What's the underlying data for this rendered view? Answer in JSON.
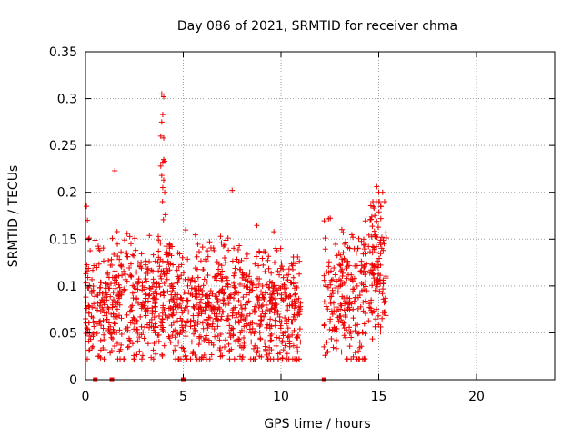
{
  "chart_data": {
    "type": "scatter",
    "title": "Day 086 of 2021, SRMTID for receiver chma",
    "xlabel": "GPS time / hours",
    "ylabel": "SRMTID / TECUs",
    "xlim": [
      0,
      24
    ],
    "ylim": [
      0,
      0.35
    ],
    "xticks": [
      0,
      5,
      10,
      15,
      20
    ],
    "xtick_labels": [
      "0",
      "5",
      "10",
      "15",
      "20"
    ],
    "yticks": [
      0,
      0.05,
      0.1,
      0.15,
      0.2,
      0.25,
      0.3,
      0.35
    ],
    "ytick_labels": [
      "0",
      "0.05",
      "0.1",
      "0.15",
      "0.2",
      "0.25",
      "0.3",
      "0.35"
    ],
    "grid": true,
    "colors": {
      "series": "#ee0000",
      "grid": "#a0a0a0",
      "axis": "#000000"
    },
    "marker": "plus",
    "dense_segments": [
      {
        "from": 0.0,
        "to": 0.2,
        "center": 0.09,
        "spread": 0.09,
        "n": 30
      },
      {
        "from": 0.2,
        "to": 1.5,
        "center": 0.075,
        "spread": 0.085,
        "n": 130
      },
      {
        "from": 1.5,
        "to": 3.6,
        "center": 0.085,
        "spread": 0.1,
        "n": 210
      },
      {
        "from": 3.6,
        "to": 4.4,
        "center": 0.1,
        "spread": 0.11,
        "n": 90
      },
      {
        "from": 4.4,
        "to": 6.0,
        "center": 0.075,
        "spread": 0.1,
        "n": 170
      },
      {
        "from": 6.0,
        "to": 8.0,
        "center": 0.08,
        "spread": 0.1,
        "n": 220
      },
      {
        "from": 8.0,
        "to": 10.0,
        "center": 0.075,
        "spread": 0.1,
        "n": 210
      },
      {
        "from": 10.0,
        "to": 11.0,
        "center": 0.075,
        "spread": 0.09,
        "n": 110
      },
      {
        "from": 12.2,
        "to": 13.0,
        "center": 0.095,
        "spread": 0.11,
        "n": 70
      },
      {
        "from": 13.0,
        "to": 14.5,
        "center": 0.09,
        "spread": 0.11,
        "n": 150
      },
      {
        "from": 14.5,
        "to": 15.4,
        "center": 0.12,
        "spread": 0.12,
        "n": 110
      }
    ],
    "notable_points": [
      {
        "x": 3.9,
        "y": 0.305
      },
      {
        "x": 4.0,
        "y": 0.302
      },
      {
        "x": 3.95,
        "y": 0.283
      },
      {
        "x": 3.9,
        "y": 0.275
      },
      {
        "x": 3.85,
        "y": 0.26
      },
      {
        "x": 4.0,
        "y": 0.258
      },
      {
        "x": 4.0,
        "y": 0.235
      },
      {
        "x": 3.95,
        "y": 0.232
      },
      {
        "x": 4.05,
        "y": 0.233
      },
      {
        "x": 3.85,
        "y": 0.228
      },
      {
        "x": 3.9,
        "y": 0.218
      },
      {
        "x": 4.0,
        "y": 0.213
      },
      {
        "x": 3.95,
        "y": 0.205
      },
      {
        "x": 4.05,
        "y": 0.2
      },
      {
        "x": 1.5,
        "y": 0.223
      },
      {
        "x": 7.5,
        "y": 0.202
      },
      {
        "x": 14.9,
        "y": 0.206
      },
      {
        "x": 15.0,
        "y": 0.2
      },
      {
        "x": 15.2,
        "y": 0.2
      },
      {
        "x": 15.3,
        "y": 0.19
      },
      {
        "x": 15.1,
        "y": 0.185
      },
      {
        "x": 0.05,
        "y": 0.185
      },
      {
        "x": 0.1,
        "y": 0.17
      },
      {
        "x": 0.15,
        "y": 0.15
      },
      {
        "x": 10.8,
        "y": 0.021
      },
      {
        "x": 12.2,
        "y": 0.035
      },
      {
        "x": 0.7,
        "y": 0.025
      },
      {
        "x": 5.5,
        "y": 0.03
      }
    ],
    "zero_markers": [
      0.5,
      1.35,
      5.0,
      12.2
    ]
  }
}
